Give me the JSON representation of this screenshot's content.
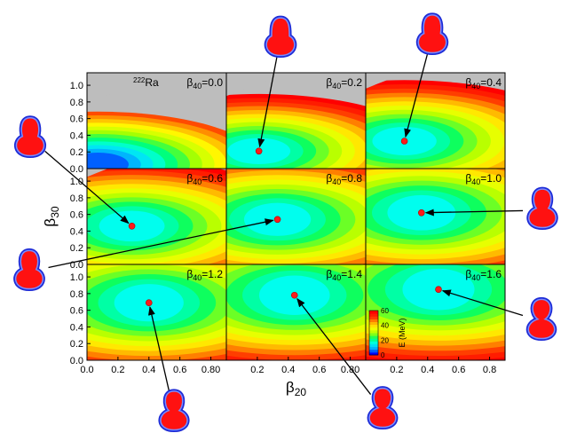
{
  "chart_data": {
    "type": "heatmap",
    "nucleus": {
      "mass": "222",
      "symbol": "Ra"
    },
    "xlabel": {
      "base": "β",
      "sub": "20"
    },
    "ylabel": {
      "base": "β",
      "sub": "30"
    },
    "xlim": [
      0.0,
      0.9
    ],
    "ylim": [
      0.0,
      1.15
    ],
    "x_ticks": [
      0.0,
      0.2,
      0.4,
      0.6,
      0.8
    ],
    "x_tick_labels_inner": [
      "0.0",
      "0.2",
      "0.4",
      "0.6",
      "0.80"
    ],
    "x_tick_labels_last": [
      "0.0",
      "0.2",
      "0.4",
      "0.6",
      "0.8"
    ],
    "y_ticks": [
      0.0,
      0.2,
      0.4,
      0.6,
      0.8,
      1.0
    ],
    "y_tick_labels": [
      "0.0",
      "0.2",
      "0.4",
      "0.6",
      "0.8",
      "1.0"
    ],
    "colorbar": {
      "label": "E (MeV)",
      "min": 0,
      "max": 60,
      "ticks": [
        0,
        20,
        40,
        60
      ],
      "colors": [
        "#0000ff",
        "#00aaff",
        "#00ffee",
        "#00ff66",
        "#aaff00",
        "#ffff00",
        "#ffaa00",
        "#ff3300",
        "#ff0000"
      ]
    },
    "panels": [
      {
        "beta40_label": "β",
        "beta40_sub": "40",
        "beta40_value": "=0.0",
        "minimum": null
      },
      {
        "beta40_label": "β",
        "beta40_sub": "40",
        "beta40_value": "=0.2",
        "minimum": {
          "x": 0.21,
          "y": 0.21
        }
      },
      {
        "beta40_label": "β",
        "beta40_sub": "40",
        "beta40_value": "=0.4",
        "minimum": {
          "x": 0.25,
          "y": 0.33
        }
      },
      {
        "beta40_label": "β",
        "beta40_sub": "40",
        "beta40_value": "=0.6",
        "minimum": {
          "x": 0.29,
          "y": 0.46
        }
      },
      {
        "beta40_label": "β",
        "beta40_sub": "40",
        "beta40_value": "=0.8",
        "minimum": {
          "x": 0.33,
          "y": 0.54
        }
      },
      {
        "beta40_label": "β",
        "beta40_sub": "40",
        "beta40_value": "=1.0",
        "minimum": {
          "x": 0.36,
          "y": 0.62
        }
      },
      {
        "beta40_label": "β",
        "beta40_sub": "40",
        "beta40_value": "=1.2",
        "minimum": {
          "x": 0.4,
          "y": 0.69
        }
      },
      {
        "beta40_label": "β",
        "beta40_sub": "40",
        "beta40_value": "=1.4",
        "minimum": {
          "x": 0.44,
          "y": 0.78
        }
      },
      {
        "beta40_label": "β",
        "beta40_sub": "40",
        "beta40_value": "=1.6",
        "minimum": {
          "x": 0.47,
          "y": 0.85
        }
      }
    ],
    "shapes": [
      {
        "panel": 1,
        "beta40": 0.2,
        "neck": 0.3
      },
      {
        "panel": 2,
        "beta40": 0.4,
        "neck": 0.36
      },
      {
        "panel": 3,
        "beta40": 0.6,
        "neck": 0.42
      },
      {
        "panel": 4,
        "beta40": 0.8,
        "neck": 0.5
      },
      {
        "panel": 5,
        "beta40": 1.0,
        "neck": 0.58
      },
      {
        "panel": 6,
        "beta40": 1.2,
        "neck": 0.66
      },
      {
        "panel": 7,
        "beta40": 1.4,
        "neck": 0.74
      },
      {
        "panel": 8,
        "beta40": 1.6,
        "neck": 0.82
      }
    ]
  }
}
